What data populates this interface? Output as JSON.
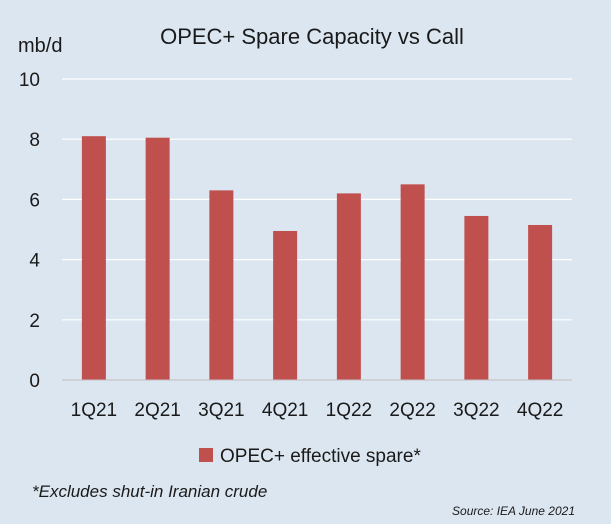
{
  "chart_data": {
    "type": "bar",
    "title": "OPEC+ Spare Capacity vs Call",
    "ylabel": "mb/d",
    "xlabel": "",
    "ylim": [
      0,
      10
    ],
    "yticks": [
      0,
      2,
      4,
      6,
      8,
      10
    ],
    "categories": [
      "1Q21",
      "2Q21",
      "3Q21",
      "4Q21",
      "1Q22",
      "2Q22",
      "3Q22",
      "4Q22"
    ],
    "series": [
      {
        "name": "OPEC+ effective spare*",
        "color": "#c0504d",
        "values": [
          8.1,
          8.05,
          6.3,
          4.95,
          6.2,
          6.5,
          5.45,
          5.15
        ]
      }
    ],
    "grid": true,
    "legend_position": "bottom"
  },
  "footnote": "*Excludes shut-in Iranian crude",
  "source": "Source: IEA June 2021"
}
